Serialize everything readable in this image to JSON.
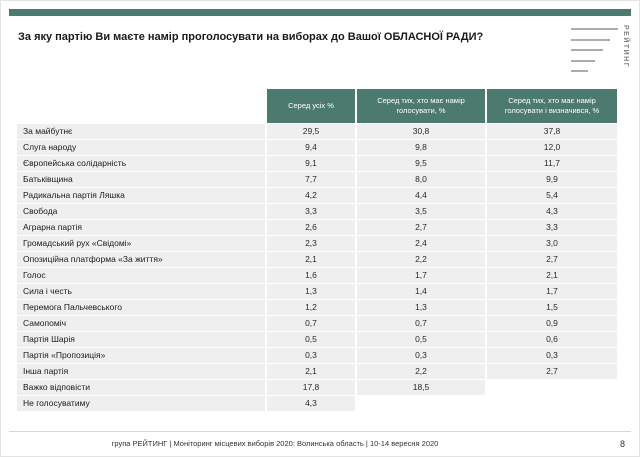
{
  "colors": {
    "accent": "#4d7a6e",
    "row_bg": "#efefef"
  },
  "header": {
    "logo_text": "РЕЙТИНГ"
  },
  "footer": {
    "text": "група РЕЙТИНГ  | Моніторинг місцевих виборів 2020: Волинська область | 10-14 вересня 2020",
    "page_number": "8"
  },
  "chart_data": {
    "type": "table",
    "title": "За яку партію Ви маєте намір проголосувати на виборах до Вашої ОБЛАСНОЇ РАДИ?",
    "columns": [
      "Серед усіх %",
      "Серед тих, хто має намір голосувати, %",
      "Серед тих, хто має намір голосувати і визначився, %"
    ],
    "rows": [
      {
        "label": "За майбутнє",
        "values": [
          "29,5",
          "30,8",
          "37,8"
        ]
      },
      {
        "label": "Слуга народу",
        "values": [
          "9,4",
          "9,8",
          "12,0"
        ]
      },
      {
        "label": "Європейська солідарність",
        "values": [
          "9,1",
          "9,5",
          "11,7"
        ]
      },
      {
        "label": "Батьківщина",
        "values": [
          "7,7",
          "8,0",
          "9,9"
        ]
      },
      {
        "label": "Радикальна партія Ляшка",
        "values": [
          "4,2",
          "4,4",
          "5,4"
        ]
      },
      {
        "label": "Свобода",
        "values": [
          "3,3",
          "3,5",
          "4,3"
        ]
      },
      {
        "label": "Аграрна партія",
        "values": [
          "2,6",
          "2,7",
          "3,3"
        ]
      },
      {
        "label": "Громадський рух «Свідомі»",
        "values": [
          "2,3",
          "2,4",
          "3,0"
        ]
      },
      {
        "label": "Опозиційна платформа «За життя»",
        "values": [
          "2,1",
          "2,2",
          "2,7"
        ]
      },
      {
        "label": "Голос",
        "values": [
          "1,6",
          "1,7",
          "2,1"
        ]
      },
      {
        "label": "Сила і честь",
        "values": [
          "1,3",
          "1,4",
          "1,7"
        ]
      },
      {
        "label": "Перемога Пальчевського",
        "values": [
          "1,2",
          "1,3",
          "1,5"
        ]
      },
      {
        "label": "Самопоміч",
        "values": [
          "0,7",
          "0,7",
          "0,9"
        ]
      },
      {
        "label": "Партія Шарія",
        "values": [
          "0,5",
          "0,5",
          "0,6"
        ]
      },
      {
        "label": "Партія «Пропозиція»",
        "values": [
          "0,3",
          "0,3",
          "0,3"
        ]
      },
      {
        "label": "Інша партія",
        "values": [
          "2,1",
          "2,2",
          "2,7"
        ]
      },
      {
        "label": "Важко відповісти",
        "values": [
          "17,8",
          "18,5",
          ""
        ]
      },
      {
        "label": "Не голосуватиму",
        "values": [
          "4,3",
          "",
          ""
        ]
      }
    ]
  }
}
